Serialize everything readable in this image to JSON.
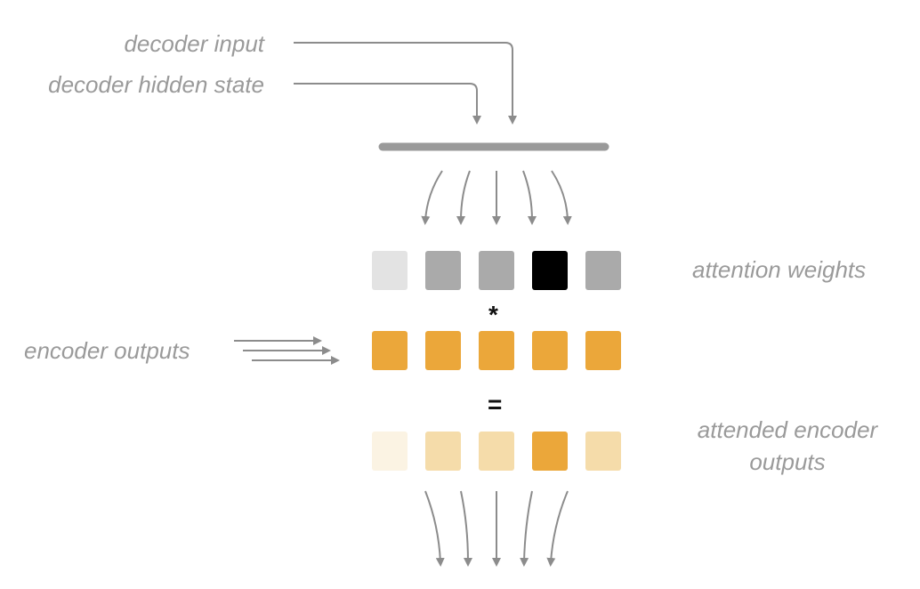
{
  "labels": {
    "decoder_input": "decoder input",
    "decoder_hidden_state": "decoder hidden state",
    "encoder_outputs": "encoder outputs",
    "attention_weights": "attention weights",
    "attended_encoder_outputs": "attended encoder outputs"
  },
  "operators": {
    "multiply": "*",
    "equals": "="
  },
  "rows": {
    "attention_weights": [
      "#e3e3e3",
      "#aaaaaa",
      "#aaaaaa",
      "#000000",
      "#aaaaaa"
    ],
    "encoder_outputs": [
      "#eba73a",
      "#eba73a",
      "#eba73a",
      "#eba73a",
      "#eba73a"
    ],
    "attended_encoder_outputs": [
      "#fbf3e3",
      "#f5dcaa",
      "#f5dcaa",
      "#eba73a",
      "#f5dcaa"
    ]
  },
  "colors": {
    "arrow": "#8c8c8c",
    "bar": "#9a9a9a",
    "label": "#9a9a9a"
  }
}
